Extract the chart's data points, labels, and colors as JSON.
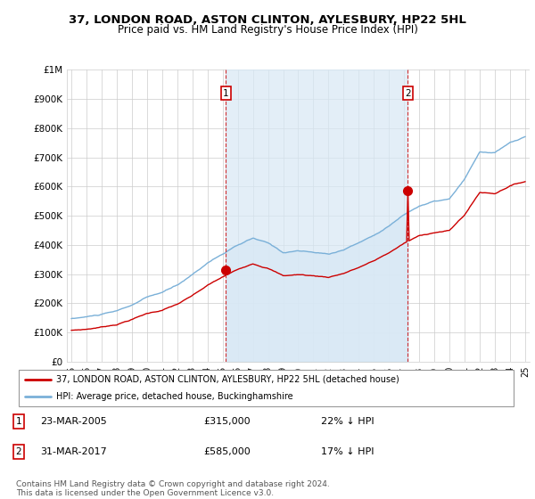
{
  "title": "37, LONDON ROAD, ASTON CLINTON, AYLESBURY, HP22 5HL",
  "subtitle": "Price paid vs. HM Land Registry's House Price Index (HPI)",
  "ylim": [
    0,
    1000000
  ],
  "yticks": [
    0,
    100000,
    200000,
    300000,
    400000,
    500000,
    600000,
    700000,
    800000,
    900000,
    1000000
  ],
  "ytick_labels": [
    "£0",
    "£100K",
    "£200K",
    "£300K",
    "£400K",
    "£500K",
    "£600K",
    "£700K",
    "£800K",
    "£900K",
    "£1M"
  ],
  "sale1_date": "23-MAR-2005",
  "sale1_price": 315000,
  "sale1_hpi_text": "22% ↓ HPI",
  "sale1_x": 2005.22,
  "sale2_date": "31-MAR-2017",
  "sale2_price": 585000,
  "sale2_hpi_text": "17% ↓ HPI",
  "sale2_x": 2017.25,
  "hpi_color": "#7ab0d8",
  "sale_color": "#cc0000",
  "fill_color": "#d8e8f5",
  "legend_label1": "37, LONDON ROAD, ASTON CLINTON, AYLESBURY, HP22 5HL (detached house)",
  "legend_label2": "HPI: Average price, detached house, Buckinghamshire",
  "footer": "Contains HM Land Registry data © Crown copyright and database right 2024.\nThis data is licensed under the Open Government Licence v3.0."
}
